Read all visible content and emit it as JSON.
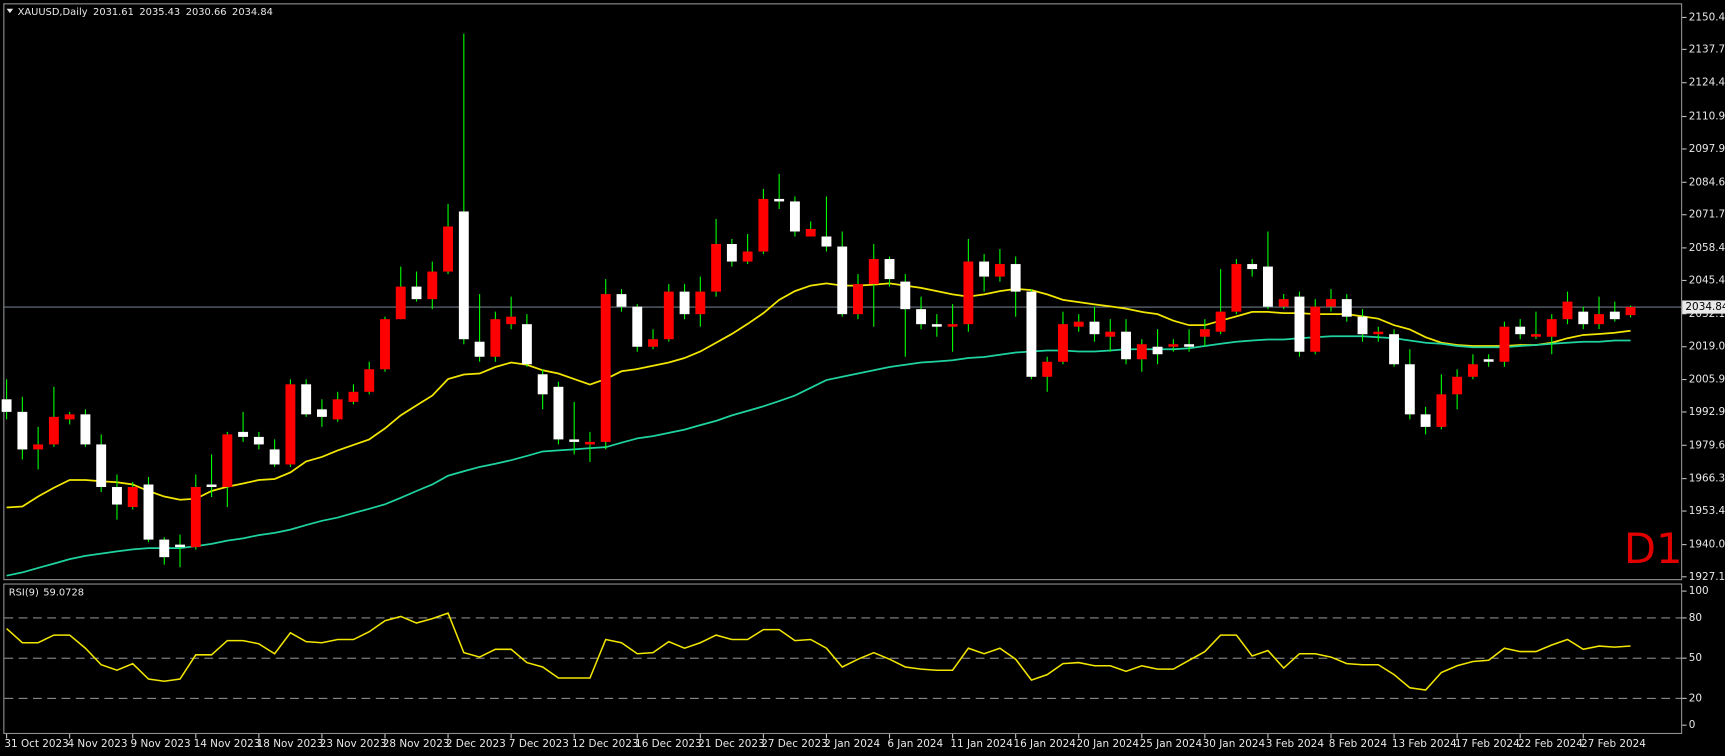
{
  "chart_data": [
    {
      "type": "candlestick",
      "title": "XAUUSD,Daily",
      "annotation": "D1",
      "categories": [
        "31 Oct 2023",
        null,
        null,
        null,
        "4 Nov 2023",
        null,
        null,
        null,
        "9 Nov 2023",
        null,
        null,
        null,
        "14 Nov 2023",
        null,
        null,
        null,
        "18 Nov 2023",
        null,
        null,
        null,
        "23 Nov 2023",
        null,
        null,
        null,
        "28 Nov 2023",
        null,
        null,
        null,
        "2 Dec 2023",
        null,
        null,
        null,
        "7 Dec 2023",
        null,
        null,
        null,
        "12 Dec 2023",
        null,
        null,
        null,
        "16 Dec 2023",
        null,
        null,
        null,
        "21 Dec 2023",
        null,
        null,
        null,
        "27 Dec 2023",
        null,
        null,
        null,
        "2 Jan 2024",
        null,
        null,
        null,
        "6 Jan 2024",
        null,
        null,
        null,
        "11 Jan 2024",
        null,
        null,
        null,
        "16 Jan 2024",
        null,
        null,
        null,
        "20 Jan 2024",
        null,
        null,
        null,
        "25 Jan 2024",
        null,
        null,
        null,
        "30 Jan 2024",
        null,
        null,
        null,
        "3 Feb 2024",
        null,
        null,
        null,
        "8 Feb 2024",
        null,
        null,
        null,
        "13 Feb 2024",
        null,
        null,
        null,
        "17 Feb 2024",
        null,
        null,
        null,
        "22 Feb 2024",
        null,
        null,
        null,
        "27 Feb 2024",
        null,
        null,
        null
      ],
      "open": [
        1998,
        1993,
        1978,
        1980,
        1990,
        1992,
        1980,
        1963,
        1955,
        1964,
        1942,
        1940,
        1939,
        1964,
        1963,
        1985,
        1983,
        1978,
        1972,
        2004,
        1994,
        1990,
        1997,
        2001,
        2010,
        2030,
        2043,
        2038,
        2049,
        2073,
        2021,
        2015,
        2028,
        2028,
        2008,
        2003,
        1982,
        1980,
        1981,
        2040,
        2035,
        2019,
        2022,
        2041,
        2032,
        2041,
        2060,
        2053,
        2057,
        2078,
        2077,
        2063,
        2063,
        2059,
        2032,
        2044,
        2054,
        2045,
        2034,
        2028,
        2027,
        2028,
        2053,
        2047,
        2052,
        2041,
        2007,
        2013,
        2027,
        2029,
        2023,
        2025,
        2014,
        2019,
        2019,
        2020,
        2023,
        2025,
        2033,
        2052,
        2051,
        2035,
        2039,
        2017,
        2035,
        2038,
        2031,
        2024,
        2024,
        2012,
        1992,
        1987,
        2000,
        2007,
        2014,
        2013,
        2027,
        2023,
        2023,
        2030,
        2033,
        2028,
        2033,
        2031.61
      ],
      "high": [
        2006,
        1999,
        1987,
        2003,
        1993,
        1994,
        1984,
        1968,
        1965,
        1967,
        1943,
        1944,
        1968,
        1976,
        1985,
        1993,
        1985,
        1982,
        2006,
        2006,
        1998,
        2001,
        2004,
        2013,
        2031,
        2051,
        2049,
        2053,
        2076,
        2144,
        2040,
        2033,
        2039,
        2032,
        2010,
        2005,
        1997,
        1985,
        2046,
        2042,
        2036,
        2026,
        2044,
        2044,
        2047,
        2070,
        2062,
        2064,
        2082,
        2088,
        2079,
        2069,
        2079,
        2065,
        2048,
        2060,
        2055,
        2048,
        2039,
        2032,
        2036,
        2062,
        2056,
        2058,
        2055,
        2042,
        2015,
        2033,
        2032,
        2035,
        2030,
        2030,
        2022,
        2026,
        2022,
        2026,
        2030,
        2050,
        2054,
        2054,
        2065,
        2040,
        2041,
        2038,
        2042,
        2040,
        2034,
        2027,
        2026,
        2018,
        1995,
        2008,
        2010,
        2016,
        2016,
        2029,
        2030,
        2033,
        2032,
        2041,
        2035,
        2039,
        2037,
        2035.43
      ],
      "low": [
        1990,
        1974,
        1970,
        1979,
        1988,
        1979,
        1961,
        1950,
        1954,
        1941,
        1932,
        1931,
        1938,
        1959,
        1955,
        1981,
        1978,
        1971,
        1971,
        1991,
        1987,
        1989,
        1996,
        2000,
        2009,
        2030,
        2037,
        2034,
        2048,
        2020,
        2013,
        2013,
        2026,
        2011,
        1994,
        1980,
        1976,
        1973,
        1978,
        2033,
        2017,
        2018,
        2021,
        2030,
        2027,
        2039,
        2051,
        2052,
        2056,
        2074,
        2063,
        2063,
        2057,
        2031,
        2030,
        2027,
        2043,
        2015,
        2026,
        2023,
        2017,
        2025,
        2041,
        2045,
        2031,
        2006,
        2001,
        2012,
        2025,
        2021,
        2017,
        2012,
        2009,
        2012,
        2017,
        2017,
        2019,
        2024,
        2032,
        2047,
        2034,
        2034,
        2015,
        2016,
        2033,
        2029,
        2021,
        2021,
        2011,
        1990,
        1984,
        1986,
        1994,
        2006,
        2011,
        2011,
        2022,
        2022,
        2016,
        2028,
        2026,
        2026,
        2029,
        2030.66
      ],
      "close": [
        1993,
        1978,
        1980,
        1991,
        1992,
        1980,
        1963,
        1956,
        1963,
        1942,
        1935,
        1939,
        1963,
        1963,
        1984,
        1983,
        1980,
        1972,
        2004,
        1992,
        1991,
        1998,
        2001,
        2010,
        2030,
        2043,
        2038,
        2049,
        2067,
        2022,
        2015,
        2030,
        2031,
        2012,
        2000,
        1982,
        1981,
        1981,
        2040,
        2035,
        2019,
        2022,
        2041,
        2032,
        2041,
        2060,
        2053,
        2057,
        2078,
        2077,
        2065,
        2066,
        2059,
        2032,
        2044,
        2054,
        2046,
        2034,
        2028,
        2027,
        2028,
        2053,
        2047,
        2052,
        2041,
        2007,
        2013,
        2028,
        2029,
        2024,
        2025,
        2014,
        2020,
        2016,
        2020,
        2019,
        2026,
        2033,
        2052,
        2050,
        2035,
        2038,
        2017,
        2035,
        2038,
        2031,
        2024,
        2025,
        2012,
        1992,
        1987,
        2000,
        2007,
        2012,
        2013,
        2027,
        2024,
        2024,
        2030,
        2037,
        2028,
        2032,
        2030,
        2034.84
      ],
      "up_color": "#ff0000",
      "down_color": "#ffffff",
      "wick_color": "#00ff00",
      "overlays": [
        {
          "color": "#f2e600",
          "values": [
            1954.8,
            1955.2,
            1959.2,
            1962.7,
            1965.8,
            1965.8,
            1965.3,
            1964.9,
            1964.0,
            1961.4,
            1959.2,
            1957.9,
            1958.3,
            1961.4,
            1963.1,
            1964.4,
            1965.8,
            1966.2,
            1968.8,
            1973.2,
            1975.0,
            1977.6,
            1979.8,
            1982.0,
            1986.4,
            1991.6,
            1995.6,
            1999.5,
            2006.1,
            2007.9,
            2008.3,
            2010.9,
            2012.7,
            2011.8,
            2009.6,
            2008.3,
            2006.1,
            2003.9,
            2006.1,
            2009.2,
            2010.1,
            2011.4,
            2012.7,
            2014.5,
            2017.1,
            2020.6,
            2024.1,
            2028.1,
            2032.4,
            2037.7,
            2041.2,
            2043.4,
            2044.3,
            2043.4,
            2043.4,
            2043.8,
            2044.3,
            2043.4,
            2042.5,
            2041.2,
            2039.9,
            2039.0,
            2039.9,
            2041.2,
            2042.1,
            2041.6,
            2039.9,
            2037.7,
            2036.8,
            2035.9,
            2035.1,
            2034.2,
            2032.9,
            2032.0,
            2029.4,
            2027.6,
            2027.6,
            2029.4,
            2031.1,
            2032.9,
            2032.9,
            2032.4,
            2032.4,
            2032.0,
            2032.0,
            2032.0,
            2031.1,
            2030.2,
            2027.6,
            2025.9,
            2022.8,
            2020.6,
            2019.7,
            2019.3,
            2019.3,
            2019.3,
            2019.7,
            2019.7,
            2020.6,
            2022.4,
            2023.7,
            2024.1,
            2024.6,
            2025.4
          ]
        },
        {
          "color": "#1fd3a0",
          "values": [
            1927.6,
            1928.9,
            1930.7,
            1932.4,
            1934.2,
            1935.5,
            1936.4,
            1937.3,
            1938.1,
            1938.6,
            1938.6,
            1938.6,
            1939.4,
            1940.3,
            1941.6,
            1942.5,
            1943.8,
            1944.7,
            1946.0,
            1947.8,
            1949.5,
            1950.8,
            1952.6,
            1954.3,
            1956.1,
            1958.7,
            1961.4,
            1964.0,
            1967.5,
            1969.3,
            1971.0,
            1972.3,
            1973.7,
            1975.4,
            1977.2,
            1977.6,
            1978.0,
            1978.5,
            1978.9,
            1980.7,
            1982.4,
            1983.3,
            1984.6,
            1985.9,
            1987.7,
            1989.4,
            1991.6,
            1993.4,
            1995.2,
            1997.3,
            1999.5,
            2002.6,
            2005.7,
            2007.0,
            2008.3,
            2009.6,
            2010.9,
            2011.8,
            2012.7,
            2013.1,
            2013.6,
            2014.5,
            2014.9,
            2015.8,
            2016.7,
            2017.1,
            2017.5,
            2017.5,
            2017.1,
            2017.1,
            2017.5,
            2018.0,
            2018.0,
            2018.0,
            2018.0,
            2018.4,
            2019.3,
            2020.2,
            2021.0,
            2021.5,
            2021.9,
            2021.9,
            2022.4,
            2022.8,
            2023.2,
            2023.2,
            2023.2,
            2022.8,
            2022.4,
            2021.5,
            2020.6,
            2020.2,
            2019.3,
            2018.8,
            2018.8,
            2018.8,
            2019.3,
            2019.7,
            2020.2,
            2020.6,
            2021.0,
            2021.0,
            2021.5,
            2021.5
          ]
        }
      ],
      "ylim": [
        1925.8,
        2156.1
      ],
      "yticks": [
        2150.45,
        {
          "value": 2137.7,
          "label": "2137.70"
        },
        {
          "value": 2124.4,
          "label": "2124.40"
        },
        {
          "value": 2110.9,
          "label": "2110.90"
        },
        2097.95,
        2084.65,
        {
          "value": 2071.7,
          "label": "2071.70"
        },
        2058.45,
        2045.45,
        2032.15,
        {
          "value": 2019,
          "label": "2019.00"
        },
        {
          "value": 2005.9,
          "label": "2005.90"
        },
        1992.95,
        1979.65,
        1966.35,
        {
          "value": 1953.4,
          "label": "1953.40"
        },
        {
          "value": 1940,
          "label": "1940.00"
        },
        1927.15
      ]
    },
    {
      "type": "line",
      "title": "RSI(9)",
      "color": "#f2e600",
      "values": [
        72.1,
        61.5,
        61.5,
        67.2,
        67.2,
        57.4,
        45.1,
        41.0,
        45.9,
        34.4,
        32.8,
        34.4,
        52.5,
        52.5,
        63.1,
        63.1,
        60.7,
        53.3,
        68.9,
        62.3,
        61.5,
        63.9,
        63.9,
        69.7,
        77.9,
        81.1,
        76.2,
        79.5,
        83.6,
        54.1,
        50.8,
        56.6,
        56.6,
        46.7,
        43.4,
        35.2,
        35.2,
        35.2,
        63.9,
        61.5,
        53.3,
        54.1,
        62.3,
        57.4,
        61.5,
        67.2,
        63.9,
        63.9,
        71.3,
        71.3,
        63.1,
        63.9,
        57.4,
        43.4,
        49.2,
        54.1,
        49.2,
        43.4,
        41.8,
        41.0,
        41.0,
        57.4,
        53.3,
        57.4,
        49.2,
        33.6,
        37.7,
        45.9,
        46.7,
        44.3,
        44.3,
        40.2,
        44.3,
        41.8,
        41.8,
        48.4,
        54.9,
        67.2,
        67.2,
        51.6,
        55.7,
        42.6,
        53.3,
        53.3,
        50.8,
        45.9,
        45.1,
        45.1,
        37.7,
        27.9,
        26.2,
        39.3,
        44.3,
        47.5,
        48.4,
        57.4,
        54.9,
        54.9,
        59.8,
        63.9,
        56.6,
        59.0,
        58.2,
        59.0728
      ],
      "ylim": [
        -6.6,
        105.7
      ],
      "yticks": [
        0,
        20,
        50,
        80,
        100
      ],
      "levels": [
        20,
        50,
        80
      ]
    }
  ]
}
